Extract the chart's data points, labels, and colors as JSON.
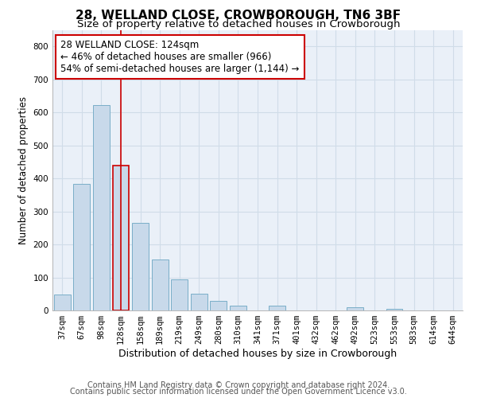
{
  "title1": "28, WELLAND CLOSE, CROWBOROUGH, TN6 3BF",
  "title2": "Size of property relative to detached houses in Crowborough",
  "xlabel": "Distribution of detached houses by size in Crowborough",
  "ylabel": "Number of detached properties",
  "categories": [
    "37sqm",
    "67sqm",
    "98sqm",
    "128sqm",
    "158sqm",
    "189sqm",
    "219sqm",
    "249sqm",
    "280sqm",
    "310sqm",
    "341sqm",
    "371sqm",
    "401sqm",
    "432sqm",
    "462sqm",
    "492sqm",
    "523sqm",
    "553sqm",
    "583sqm",
    "614sqm",
    "644sqm"
  ],
  "values": [
    48,
    383,
    622,
    440,
    265,
    155,
    95,
    50,
    30,
    15,
    0,
    14,
    0,
    0,
    0,
    10,
    0,
    5,
    0,
    0,
    0
  ],
  "bar_color": "#c8d9ea",
  "bar_edge_color": "#7aaec8",
  "highlight_bar_index": 3,
  "highlight_edge_color": "#cc0000",
  "vline_color": "#cc0000",
  "ylim": [
    0,
    850
  ],
  "yticks": [
    0,
    100,
    200,
    300,
    400,
    500,
    600,
    700,
    800
  ],
  "annotation_text": "28 WELLAND CLOSE: 124sqm\n← 46% of detached houses are smaller (966)\n54% of semi-detached houses are larger (1,144) →",
  "annotation_box_color": "#ffffff",
  "annotation_box_edge": "#cc0000",
  "footer1": "Contains HM Land Registry data © Crown copyright and database right 2024.",
  "footer2": "Contains public sector information licensed under the Open Government Licence v3.0.",
  "background_color": "#ffffff",
  "plot_bg_color": "#eaf0f8",
  "grid_color": "#d0dce8",
  "title1_fontsize": 11,
  "title2_fontsize": 9.5,
  "xlabel_fontsize": 9,
  "ylabel_fontsize": 8.5,
  "tick_fontsize": 7.5,
  "footer_fontsize": 7.0,
  "ann_fontsize": 8.5
}
